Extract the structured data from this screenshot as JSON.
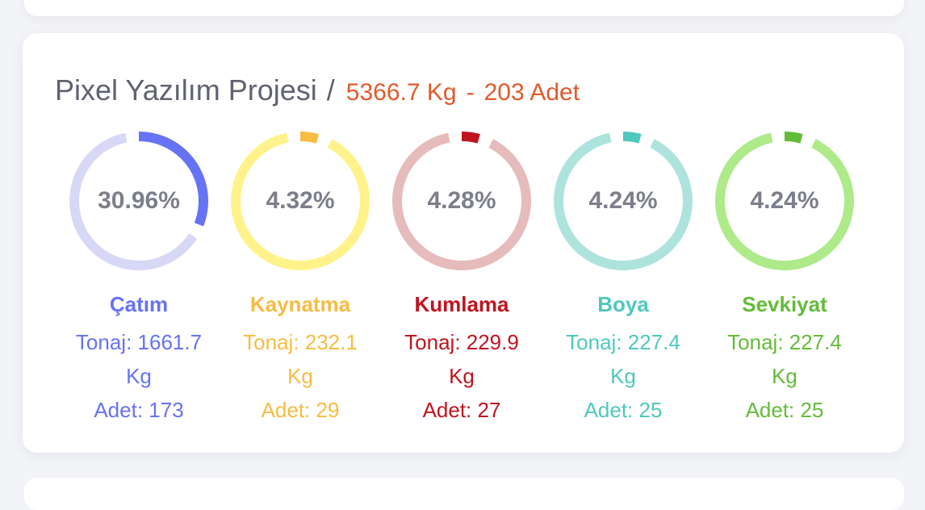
{
  "project": {
    "name": "Pixel Yazılım Projesi",
    "separator": "/",
    "total_kg": "5366.7 Kg",
    "dash": "-",
    "total_count": "203 Adet"
  },
  "stages": [
    {
      "name": "Çatım",
      "percent": 30.96,
      "percent_label": "30.96%",
      "tonnage": "Tonaj: 1661.7 Kg",
      "count": "Adet: 173",
      "color": "#6673f5",
      "track_color": "#d7d8f5"
    },
    {
      "name": "Kaynatma",
      "percent": 4.32,
      "percent_label": "4.32%",
      "tonnage": "Tonaj: 232.1 Kg",
      "count": "Adet: 29",
      "color": "#f6bc43",
      "track_color": "#fff28a"
    },
    {
      "name": "Kumlama",
      "percent": 4.28,
      "percent_label": "4.28%",
      "tonnage": "Tonaj: 229.9 Kg",
      "count": "Adet: 27",
      "color": "#c0141f",
      "track_color": "#e6bbbb"
    },
    {
      "name": "Boya",
      "percent": 4.24,
      "percent_label": "4.24%",
      "tonnage": "Tonaj: 227.4 Kg",
      "count": "Adet: 25",
      "color": "#4fc8bd",
      "track_color": "#ade3dc"
    },
    {
      "name": "Sevkiyat",
      "percent": 4.24,
      "percent_label": "4.24%",
      "tonnage": "Tonaj: 227.4 Kg",
      "count": "Adet: 25",
      "color": "#64bb3a",
      "track_color": "#aeea8a"
    }
  ]
}
